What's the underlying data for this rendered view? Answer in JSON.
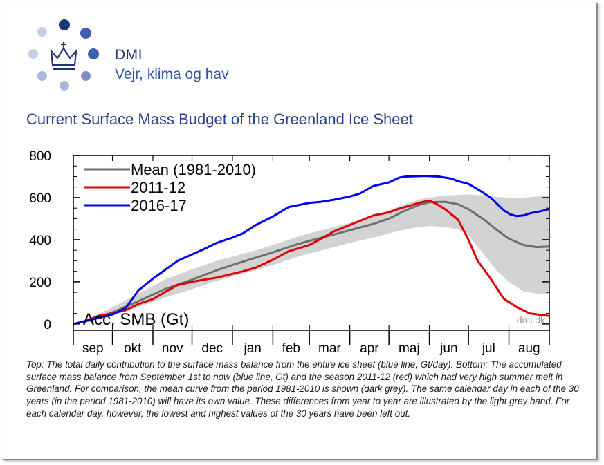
{
  "brand": {
    "name": "DMI",
    "tagline": "Vejr, klima og hav",
    "colors": {
      "dark": "#1e3578",
      "mid": "#3f5fae",
      "light": "#aab7dc"
    },
    "logo_icon": "crown-icon"
  },
  "page": {
    "title": "Current Surface Mass Budget of the Greenland Ice Sheet"
  },
  "chart_data": {
    "type": "line",
    "title": "",
    "ylabel": "Acc. SMB (Gt)",
    "credit": "dmi.dk",
    "ylim": [
      -30,
      800
    ],
    "xlim": [
      0,
      365
    ],
    "y_ticks": [
      0,
      200,
      400,
      600,
      800
    ],
    "month_labels": [
      "sep",
      "okt",
      "nov",
      "dec",
      "jan",
      "feb",
      "mar",
      "apr",
      "maj",
      "jun",
      "jul",
      "aug"
    ],
    "month_starts": [
      0,
      30,
      61,
      91,
      122,
      153,
      181,
      212,
      242,
      273,
      303,
      334,
      365
    ],
    "legend_position": "top-left",
    "grid": false,
    "band": {
      "color": "#d3d3d3",
      "x": [
        0,
        15,
        30,
        50,
        70,
        91,
        110,
        122,
        140,
        153,
        170,
        181,
        200,
        212,
        230,
        242,
        255,
        265,
        273,
        285,
        295,
        303,
        315,
        325,
        334,
        345,
        355,
        365
      ],
      "low": [
        0,
        15,
        40,
        80,
        125,
        165,
        205,
        225,
        255,
        280,
        315,
        335,
        365,
        385,
        410,
        430,
        450,
        460,
        465,
        460,
        450,
        420,
        330,
        250,
        200,
        155,
        145,
        140
      ],
      "high": [
        0,
        35,
        80,
        145,
        210,
        260,
        300,
        320,
        350,
        375,
        410,
        430,
        460,
        480,
        510,
        540,
        570,
        590,
        600,
        610,
        612,
        615,
        610,
        603,
        600,
        600,
        605,
        610
      ]
    },
    "series": [
      {
        "name": "Mean (1981-2010)",
        "color": "#6e6e6e",
        "x": [
          0,
          15,
          30,
          50,
          70,
          91,
          110,
          122,
          140,
          153,
          170,
          181,
          200,
          212,
          230,
          242,
          255,
          265,
          273,
          285,
          295,
          303,
          315,
          325,
          334,
          345,
          355,
          365
        ],
        "values": [
          0,
          22,
          55,
          108,
          165,
          210,
          255,
          280,
          315,
          340,
          375,
          395,
          425,
          445,
          475,
          500,
          540,
          565,
          578,
          580,
          568,
          545,
          495,
          445,
          405,
          375,
          365,
          368
        ]
      },
      {
        "name": "2011-12",
        "color": "#e00000",
        "x": [
          0,
          10,
          20,
          30,
          40,
          50,
          61,
          70,
          80,
          91,
          100,
          110,
          122,
          130,
          140,
          153,
          165,
          181,
          190,
          200,
          212,
          220,
          230,
          242,
          250,
          260,
          265,
          270,
          273,
          278,
          285,
          290,
          295,
          303,
          310,
          320,
          330,
          340,
          350,
          365
        ],
        "values": [
          0,
          15,
          40,
          50,
          65,
          95,
          118,
          150,
          185,
          200,
          210,
          220,
          238,
          250,
          268,
          305,
          345,
          375,
          405,
          440,
          470,
          490,
          515,
          530,
          548,
          565,
          575,
          582,
          585,
          572,
          545,
          520,
          495,
          400,
          300,
          215,
          120,
          80,
          50,
          38
        ]
      },
      {
        "name": "2016-17",
        "color": "#0000ee",
        "x": [
          0,
          10,
          20,
          30,
          40,
          50,
          61,
          70,
          80,
          91,
          100,
          110,
          122,
          130,
          140,
          153,
          165,
          181,
          190,
          200,
          212,
          220,
          230,
          242,
          250,
          255,
          265,
          270,
          273,
          280,
          290,
          295,
          303,
          310,
          320,
          325,
          330,
          335,
          340,
          345,
          350,
          358,
          365
        ],
        "values": [
          0,
          15,
          30,
          45,
          75,
          160,
          215,
          255,
          300,
          330,
          355,
          385,
          410,
          430,
          470,
          510,
          555,
          575,
          580,
          590,
          605,
          620,
          655,
          672,
          695,
          700,
          702,
          703,
          702,
          700,
          690,
          678,
          665,
          640,
          600,
          570,
          540,
          520,
          512,
          515,
          525,
          535,
          545
        ]
      }
    ]
  },
  "caption": "Top: The total daily contribution to the surface mass balance from the entire ice sheet (blue line, Gt/day). Bottom: The accumulated surface mass balance from September 1st to now (blue line, Gt) and the season 2011-12 (red) which had very high summer melt in Greenland. For comparison, the mean curve from the period 1981-2010 is shown (dark grey). The same calendar day in each of the 30 years (in the period 1981-2010) will have its own value. These differences from year to year are illustrated by the light grey band. For each calendar day, however, the lowest and highest values of the 30 years have been left out."
}
